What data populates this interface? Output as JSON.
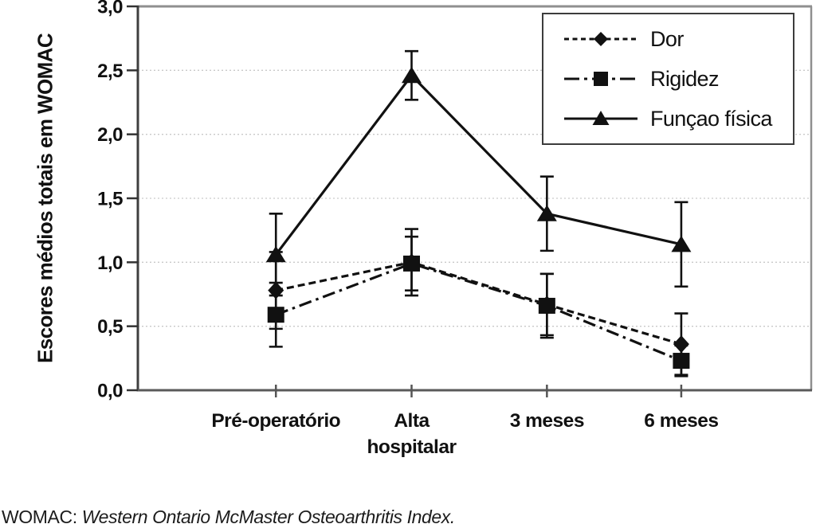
{
  "footer": {
    "abbr": "WOMAC:",
    "definition": "Western Ontario McMaster Osteoarthritis Index."
  },
  "chart_data": {
    "type": "line",
    "title": "",
    "xlabel": "",
    "ylabel": "Escores médios totais em WOMAC",
    "ylim": [
      0,
      3
    ],
    "ytick_step": 0.5,
    "ytick_labels": [
      "0,0",
      "0,5",
      "1,0",
      "1,5",
      "2,0",
      "2,5",
      "3,0"
    ],
    "grid": "horizontal dotted at each 0,5 tick",
    "legend_position": "inside top-right, boxed",
    "categories": [
      "Pré-operatório",
      "Alta\nhospitalar",
      "3 meses",
      "6 meses"
    ],
    "series": [
      {
        "name": "Dor",
        "marker": "diamond",
        "line_style": "dashed",
        "values": [
          0.78,
          1.0,
          0.67,
          0.36
        ],
        "error": [
          0.3,
          0.26,
          0.24,
          0.24
        ]
      },
      {
        "name": "Rigidez",
        "marker": "square",
        "line_style": "dash-dot",
        "values": [
          0.59,
          0.99,
          0.66,
          0.23
        ],
        "error": [
          0.25,
          0.21,
          0.25,
          0.12
        ]
      },
      {
        "name": "Funçao física",
        "marker": "triangle",
        "line_style": "solid",
        "values": [
          1.06,
          2.46,
          1.38,
          1.14
        ],
        "error": [
          0.32,
          0.19,
          0.29,
          0.33
        ]
      }
    ],
    "colors": {
      "series": "#111111",
      "grid": "#c9c9c9",
      "axis": "#4a4a4a",
      "border": "#8f8f8f",
      "tick": "#333333"
    }
  }
}
